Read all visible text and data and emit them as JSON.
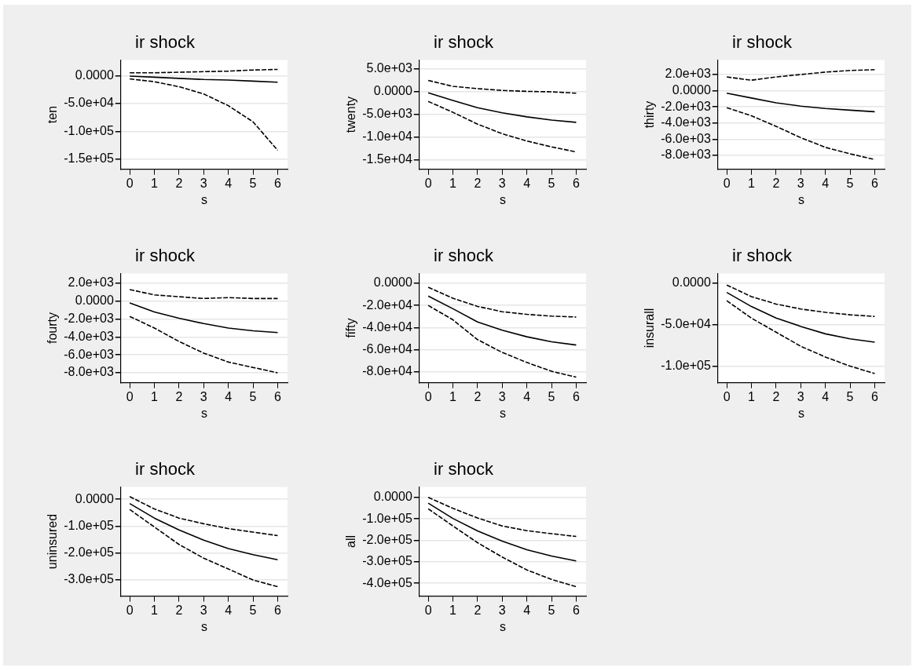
{
  "chart_data": [
    {
      "type": "line",
      "title": "ir shock",
      "xlabel": "s",
      "ylabel": "ten",
      "x": [
        0,
        1,
        2,
        3,
        4,
        5,
        6
      ],
      "xlim": [
        -0.36,
        6.4
      ],
      "xticks": [
        0,
        1,
        2,
        3,
        4,
        5,
        6
      ],
      "ylim": [
        -168000,
        28000
      ],
      "yticks": [
        {
          "value": 0,
          "label": "0.0000"
        },
        {
          "value": -50000,
          "label": "-5.0e+04"
        },
        {
          "value": -100000,
          "label": "-1.0e+05"
        },
        {
          "value": -150000,
          "label": "-1.5e+05"
        }
      ],
      "grid": "y",
      "marker": "none",
      "series": [
        {
          "color": "#000000",
          "line_style": "dashed",
          "values": [
            5000,
            5000,
            6000,
            7000,
            8000,
            10000,
            11000
          ]
        },
        {
          "color": "#000000",
          "line_style": "solid",
          "values": [
            -1000,
            -3000,
            -5000,
            -7000,
            -8000,
            -10000,
            -12000
          ]
        },
        {
          "color": "#000000",
          "line_style": "dashed",
          "values": [
            -6000,
            -11000,
            -20000,
            -33000,
            -54000,
            -83000,
            -134000
          ]
        }
      ]
    },
    {
      "type": "line",
      "title": "ir shock",
      "xlabel": "s",
      "ylabel": "twenty",
      "x": [
        0,
        1,
        2,
        3,
        4,
        5,
        6
      ],
      "xlim": [
        -0.36,
        6.4
      ],
      "xticks": [
        0,
        1,
        2,
        3,
        4,
        5,
        6
      ],
      "ylim": [
        -17000,
        7000
      ],
      "yticks": [
        {
          "value": 5000,
          "label": "5.0e+03"
        },
        {
          "value": 0,
          "label": "0.0000"
        },
        {
          "value": -5000,
          "label": "-5.0e+03"
        },
        {
          "value": -10000,
          "label": "-1.0e+04"
        },
        {
          "value": -15000,
          "label": "-1.5e+04"
        }
      ],
      "grid": "y",
      "marker": "none",
      "series": [
        {
          "color": "#000000",
          "line_style": "dashed",
          "values": [
            2500,
            1200,
            700,
            300,
            100,
            0,
            -300
          ]
        },
        {
          "color": "#000000",
          "line_style": "solid",
          "values": [
            -200,
            -1900,
            -3500,
            -4600,
            -5500,
            -6200,
            -6700
          ]
        },
        {
          "color": "#000000",
          "line_style": "dashed",
          "values": [
            -2100,
            -4500,
            -7100,
            -9200,
            -10800,
            -12100,
            -13200
          ]
        }
      ]
    },
    {
      "type": "line",
      "title": "ir shock",
      "xlabel": "s",
      "ylabel": "thirty",
      "x": [
        0,
        1,
        2,
        3,
        4,
        5,
        6
      ],
      "xlim": [
        -0.36,
        6.4
      ],
      "xticks": [
        0,
        1,
        2,
        3,
        4,
        5,
        6
      ],
      "ylim": [
        -9700,
        3800
      ],
      "yticks": [
        {
          "value": 2000,
          "label": "2.0e+03"
        },
        {
          "value": 0,
          "label": "0.0000"
        },
        {
          "value": -2000,
          "label": "-2.0e+03"
        },
        {
          "value": -4000,
          "label": "-4.0e+03"
        },
        {
          "value": -6000,
          "label": "-6.0e+03"
        },
        {
          "value": -8000,
          "label": "-8.0e+03"
        }
      ],
      "grid": "y",
      "marker": "none",
      "series": [
        {
          "color": "#000000",
          "line_style": "dashed",
          "values": [
            1700,
            1300,
            1700,
            2000,
            2300,
            2500,
            2600
          ]
        },
        {
          "color": "#000000",
          "line_style": "solid",
          "values": [
            -300,
            -900,
            -1500,
            -1900,
            -2200,
            -2400,
            -2600
          ]
        },
        {
          "color": "#000000",
          "line_style": "dashed",
          "values": [
            -2100,
            -3100,
            -4400,
            -5800,
            -7000,
            -7800,
            -8500
          ]
        }
      ]
    },
    {
      "type": "line",
      "title": "ir shock",
      "xlabel": "s",
      "ylabel": "fourty",
      "x": [
        0,
        1,
        2,
        3,
        4,
        5,
        6
      ],
      "xlim": [
        -0.36,
        6.4
      ],
      "xticks": [
        0,
        1,
        2,
        3,
        4,
        5,
        6
      ],
      "ylim": [
        -9100,
        3100
      ],
      "yticks": [
        {
          "value": 2000,
          "label": "2.0e+03"
        },
        {
          "value": 0,
          "label": "0.0000"
        },
        {
          "value": -2000,
          "label": "-2.0e+03"
        },
        {
          "value": -4000,
          "label": "-4.0e+03"
        },
        {
          "value": -6000,
          "label": "-6.0e+03"
        },
        {
          "value": -8000,
          "label": "-8.0e+03"
        }
      ],
      "grid": "y",
      "marker": "none",
      "series": [
        {
          "color": "#000000",
          "line_style": "dashed",
          "values": [
            1300,
            700,
            500,
            300,
            400,
            300,
            300
          ]
        },
        {
          "color": "#000000",
          "line_style": "solid",
          "values": [
            -200,
            -1200,
            -1900,
            -2500,
            -3000,
            -3300,
            -3500
          ]
        },
        {
          "color": "#000000",
          "line_style": "dashed",
          "values": [
            -1700,
            -3000,
            -4500,
            -5800,
            -6800,
            -7400,
            -8000
          ]
        }
      ]
    },
    {
      "type": "line",
      "title": "ir shock",
      "xlabel": "s",
      "ylabel": "fifty",
      "x": [
        0,
        1,
        2,
        3,
        4,
        5,
        6
      ],
      "xlim": [
        -0.36,
        6.4
      ],
      "xticks": [
        0,
        1,
        2,
        3,
        4,
        5,
        6
      ],
      "ylim": [
        -90000,
        9000
      ],
      "yticks": [
        {
          "value": 0,
          "label": "0.0000"
        },
        {
          "value": -20000,
          "label": "-2.0e+04"
        },
        {
          "value": -40000,
          "label": "-4.0e+04"
        },
        {
          "value": -60000,
          "label": "-6.0e+04"
        },
        {
          "value": -80000,
          "label": "-8.0e+04"
        }
      ],
      "grid": "y",
      "marker": "none",
      "series": [
        {
          "color": "#000000",
          "line_style": "dashed",
          "values": [
            -3500,
            -13500,
            -20900,
            -25700,
            -28100,
            -29700,
            -30500
          ]
        },
        {
          "color": "#000000",
          "line_style": "solid",
          "values": [
            -11500,
            -23000,
            -35000,
            -42500,
            -48400,
            -53000,
            -55900
          ]
        },
        {
          "color": "#000000",
          "line_style": "dashed",
          "values": [
            -20000,
            -33000,
            -51000,
            -62600,
            -71700,
            -79700,
            -85000
          ]
        }
      ]
    },
    {
      "type": "line",
      "title": "ir shock",
      "xlabel": "s",
      "ylabel": "insurall",
      "x": [
        0,
        1,
        2,
        3,
        4,
        5,
        6
      ],
      "xlim": [
        -0.36,
        6.4
      ],
      "xticks": [
        0,
        1,
        2,
        3,
        4,
        5,
        6
      ],
      "ylim": [
        -120000,
        12000
      ],
      "yticks": [
        {
          "value": 0,
          "label": "0.0000"
        },
        {
          "value": -50000,
          "label": "-5.0e+04"
        },
        {
          "value": -100000,
          "label": "-1.0e+05"
        }
      ],
      "grid": "y",
      "marker": "none",
      "series": [
        {
          "color": "#000000",
          "line_style": "dashed",
          "values": [
            -2000,
            -16000,
            -25000,
            -31000,
            -35000,
            -38000,
            -40000
          ]
        },
        {
          "color": "#000000",
          "line_style": "solid",
          "values": [
            -11000,
            -28000,
            -42000,
            -52000,
            -61000,
            -67000,
            -71000
          ]
        },
        {
          "color": "#000000",
          "line_style": "dashed",
          "values": [
            -21000,
            -42000,
            -59000,
            -76000,
            -89000,
            -100000,
            -109000
          ]
        }
      ]
    },
    {
      "type": "line",
      "title": "ir shock",
      "xlabel": "s",
      "ylabel": "uninsured",
      "x": [
        0,
        1,
        2,
        3,
        4,
        5,
        6
      ],
      "xlim": [
        -0.36,
        6.4
      ],
      "xticks": [
        0,
        1,
        2,
        3,
        4,
        5,
        6
      ],
      "ylim": [
        -360000,
        46000
      ],
      "yticks": [
        {
          "value": 0,
          "label": "0.0000"
        },
        {
          "value": -100000,
          "label": "-1.0e+05"
        },
        {
          "value": -200000,
          "label": "-2.0e+05"
        },
        {
          "value": -300000,
          "label": "-3.0e+05"
        }
      ],
      "grid": "y",
      "marker": "none",
      "series": [
        {
          "color": "#000000",
          "line_style": "dashed",
          "values": [
            10000,
            -36000,
            -70000,
            -91000,
            -109000,
            -122000,
            -135000
          ]
        },
        {
          "color": "#000000",
          "line_style": "solid",
          "values": [
            -16000,
            -70000,
            -114000,
            -152000,
            -183000,
            -206000,
            -225000
          ]
        },
        {
          "color": "#000000",
          "line_style": "dashed",
          "values": [
            -38000,
            -103000,
            -168000,
            -219000,
            -259000,
            -300000,
            -325000
          ]
        }
      ]
    },
    {
      "type": "line",
      "title": "ir shock",
      "xlabel": "s",
      "ylabel": "all",
      "x": [
        0,
        1,
        2,
        3,
        4,
        5,
        6
      ],
      "xlim": [
        -0.36,
        6.4
      ],
      "xticks": [
        0,
        1,
        2,
        3,
        4,
        5,
        6
      ],
      "ylim": [
        -460000,
        49000
      ],
      "yticks": [
        {
          "value": 0,
          "label": "0.0000"
        },
        {
          "value": -100000,
          "label": "-1.0e+05"
        },
        {
          "value": -200000,
          "label": "-2.0e+05"
        },
        {
          "value": -300000,
          "label": "-3.0e+05"
        },
        {
          "value": -400000,
          "label": "-4.0e+05"
        }
      ],
      "grid": "y",
      "marker": "none",
      "series": [
        {
          "color": "#000000",
          "line_style": "dashed",
          "values": [
            0,
            -51000,
            -96000,
            -133000,
            -155000,
            -169000,
            -182000
          ]
        },
        {
          "color": "#000000",
          "line_style": "solid",
          "values": [
            -27000,
            -98000,
            -156000,
            -204000,
            -244000,
            -273000,
            -296000
          ]
        },
        {
          "color": "#000000",
          "line_style": "dashed",
          "values": [
            -53000,
            -133000,
            -211000,
            -278000,
            -338000,
            -382000,
            -416000
          ]
        }
      ]
    }
  ]
}
